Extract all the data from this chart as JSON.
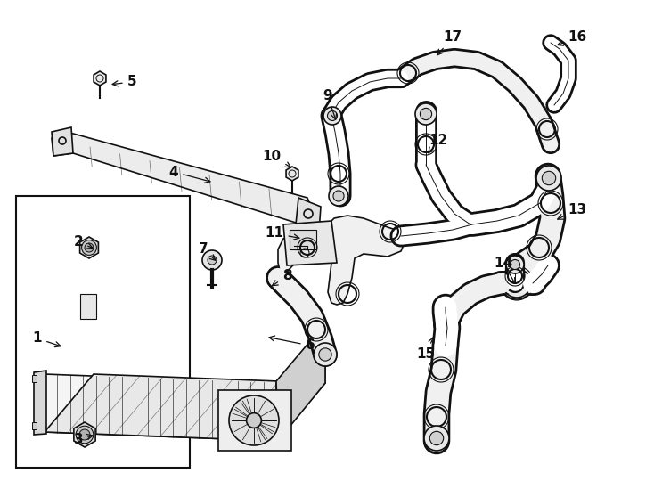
{
  "bg_color": "#ffffff",
  "line_color": "#111111",
  "fig_width": 7.34,
  "fig_height": 5.4,
  "dpi": 100,
  "labels": [
    [
      "1",
      42,
      380,
      72,
      390,
      "left"
    ],
    [
      "2",
      88,
      272,
      108,
      280,
      "left"
    ],
    [
      "3",
      88,
      493,
      108,
      488,
      "left"
    ],
    [
      "4",
      195,
      193,
      240,
      205,
      "left"
    ],
    [
      "5",
      148,
      92,
      122,
      95,
      "right"
    ],
    [
      "6",
      348,
      388,
      298,
      378,
      "right"
    ],
    [
      "7",
      228,
      280,
      245,
      295,
      "left"
    ],
    [
      "8",
      322,
      310,
      302,
      323,
      "right"
    ],
    [
      "9",
      368,
      108,
      378,
      138,
      "left"
    ],
    [
      "10",
      305,
      175,
      330,
      190,
      "left"
    ],
    [
      "11",
      308,
      262,
      340,
      268,
      "left"
    ],
    [
      "12",
      492,
      158,
      478,
      175,
      "right"
    ],
    [
      "13",
      648,
      235,
      622,
      248,
      "right"
    ],
    [
      "14",
      565,
      295,
      580,
      322,
      "left"
    ],
    [
      "15",
      478,
      398,
      488,
      375,
      "right"
    ],
    [
      "16",
      648,
      42,
      622,
      52,
      "right"
    ],
    [
      "17",
      508,
      42,
      488,
      65,
      "right"
    ]
  ]
}
